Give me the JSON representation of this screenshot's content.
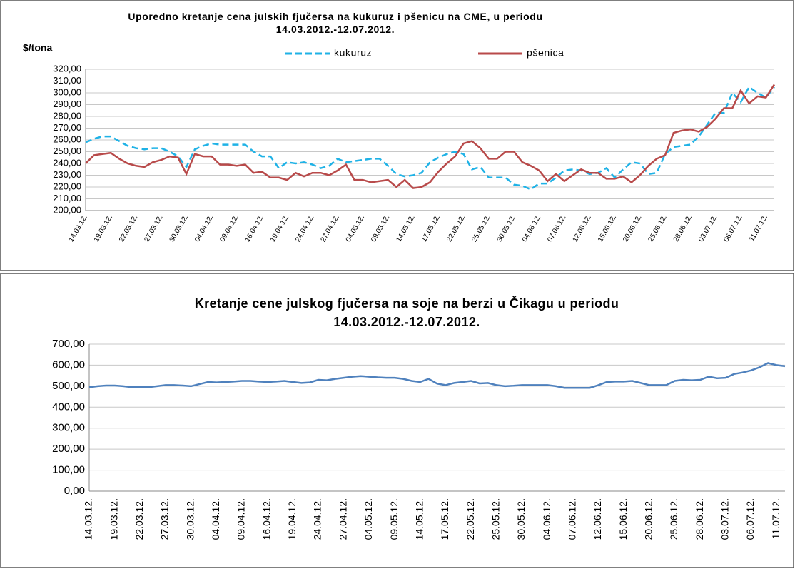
{
  "chart_data": [
    {
      "type": "line",
      "title": "Uporedno kretanje cena julskih fjučersa na kukuruz i pšenicu na CME, u periodu 14.03.2012.-12.07.2012.",
      "y_label": "$/tona",
      "categories": [
        "14.03.12.",
        null,
        null,
        "19.03.12.",
        null,
        null,
        "22.03.12.",
        null,
        null,
        "27.03.12.",
        null,
        null,
        "30.03.12.",
        null,
        null,
        "04.04.12.",
        null,
        null,
        "09.04.12.",
        null,
        null,
        "16.04.12.",
        null,
        null,
        "19.04.12.",
        null,
        null,
        "24.04.12.",
        null,
        null,
        "27.04.12.",
        null,
        null,
        "04.05.12.",
        null,
        null,
        "09.05.12.",
        null,
        null,
        "14.05.12.",
        null,
        null,
        "17.05.12.",
        null,
        null,
        "22.05.12.",
        null,
        null,
        "25.05.12.",
        null,
        null,
        "30.05.12.",
        null,
        null,
        "04.06.12.",
        null,
        null,
        "07.06.12.",
        null,
        null,
        "12.06.12.",
        null,
        null,
        "15.06.12.",
        null,
        null,
        "20.06.12.",
        null,
        null,
        "25.06.12.",
        null,
        null,
        "28.06.12.",
        null,
        null,
        "03.07.12.",
        null,
        null,
        "06.07.12.",
        null,
        null,
        "11.07.12.",
        null
      ],
      "series": [
        {
          "name": "kukuruz",
          "color": "#1fb2e6",
          "line_style": "dashed",
          "values": [
            258,
            261,
            263,
            263,
            259,
            255,
            253,
            252,
            253,
            253,
            250,
            246,
            237,
            252,
            255,
            257,
            256,
            256,
            256,
            256,
            250,
            246,
            246,
            236,
            241,
            240,
            241,
            239,
            236,
            238,
            244,
            241,
            242,
            243,
            244,
            244,
            238,
            231,
            229,
            230,
            232,
            241,
            245,
            248,
            250,
            248,
            235,
            237,
            228,
            228,
            228,
            222,
            221,
            218,
            223,
            223,
            228,
            234,
            235,
            234,
            231,
            232,
            236,
            228,
            235,
            241,
            240,
            231,
            232,
            248,
            254,
            255,
            256,
            263,
            273,
            283,
            283,
            300,
            292,
            305,
            300,
            296,
            305
          ]
        },
        {
          "name": "pšenica",
          "color": "#b84a4a",
          "line_style": "solid",
          "values": [
            240,
            247,
            248,
            249,
            244,
            240,
            238,
            237,
            241,
            243,
            246,
            245,
            231,
            248,
            246,
            246,
            239,
            239,
            238,
            239,
            232,
            233,
            228,
            228,
            226,
            232,
            229,
            232,
            232,
            230,
            234,
            239,
            226,
            226,
            224,
            225,
            226,
            220,
            226,
            219,
            220,
            224,
            233,
            240,
            246,
            257,
            259,
            253,
            244,
            244,
            250,
            250,
            241,
            238,
            234,
            225,
            231,
            225,
            230,
            235,
            232,
            232,
            227,
            227,
            229,
            224,
            230,
            238,
            244,
            247,
            266,
            268,
            269,
            267,
            271,
            278,
            287,
            287,
            302,
            291,
            297,
            296,
            307
          ]
        }
      ],
      "ylim": [
        200,
        320
      ],
      "yticks": [
        {
          "value": 200,
          "label": "200,00"
        },
        {
          "value": 210,
          "label": "210,00"
        },
        {
          "value": 220,
          "label": "220,00"
        },
        {
          "value": 230,
          "label": "230,00"
        },
        {
          "value": 240,
          "label": "240,00"
        },
        {
          "value": 250,
          "label": "250,00"
        },
        {
          "value": 260,
          "label": "260,00"
        },
        {
          "value": 270,
          "label": "270,00"
        },
        {
          "value": 280,
          "label": "280,00"
        },
        {
          "value": 290,
          "label": "290,00"
        },
        {
          "value": 300,
          "label": "300,00"
        },
        {
          "value": 310,
          "label": "310,00"
        },
        {
          "value": 320,
          "label": "320,00"
        }
      ],
      "grid": true,
      "legend": "top"
    },
    {
      "type": "line",
      "title": "Kretanje cene julskog fjučersa na soje na berzi u Čikagu u periodu 14.03.2012.-12.07.2012.",
      "categories": [
        "14.03.12.",
        null,
        null,
        "19.03.12.",
        null,
        null,
        "22.03.12.",
        null,
        null,
        "27.03.12.",
        null,
        null,
        "30.03.12.",
        null,
        null,
        "04.04.12.",
        null,
        null,
        "09.04.12.",
        null,
        null,
        "16.04.12.",
        null,
        null,
        "19.04.12.",
        null,
        null,
        "24.04.12.",
        null,
        null,
        "27.04.12.",
        null,
        null,
        "04.05.12.",
        null,
        null,
        "09.05.12.",
        null,
        null,
        "14.05.12.",
        null,
        null,
        "17.05.12.",
        null,
        null,
        "22.05.12.",
        null,
        null,
        "25.05.12.",
        null,
        null,
        "30.05.12.",
        null,
        null,
        "04.06.12.",
        null,
        null,
        "07.06.12.",
        null,
        null,
        "12.06.12.",
        null,
        null,
        "15.06.12.",
        null,
        null,
        "20.06.12.",
        null,
        null,
        "25.06.12.",
        null,
        null,
        "28.06.12.",
        null,
        null,
        "03.07.12.",
        null,
        null,
        "06.07.12.",
        null,
        null,
        "11.07.12.",
        null
      ],
      "color": "#4f81bd",
      "values": [
        495,
        500,
        503,
        503,
        500,
        495,
        497,
        495,
        500,
        505,
        505,
        503,
        500,
        510,
        520,
        518,
        520,
        522,
        525,
        525,
        522,
        520,
        522,
        525,
        520,
        515,
        518,
        530,
        528,
        535,
        540,
        545,
        548,
        545,
        542,
        540,
        540,
        535,
        525,
        520,
        535,
        512,
        505,
        515,
        520,
        525,
        513,
        515,
        505,
        500,
        502,
        505,
        505,
        505,
        505,
        500,
        492,
        492,
        492,
        492,
        505,
        520,
        522,
        522,
        525,
        515,
        505,
        505,
        505,
        525,
        530,
        528,
        530,
        545,
        538,
        540,
        558,
        565,
        575,
        590,
        610,
        600,
        595
      ],
      "ylim": [
        0,
        700
      ],
      "yticks": [
        {
          "value": 0,
          "label": "0,00"
        },
        {
          "value": 100,
          "label": "100,00"
        },
        {
          "value": 200,
          "label": "200,00"
        },
        {
          "value": 300,
          "label": "300,00"
        },
        {
          "value": 400,
          "label": "400,00"
        },
        {
          "value": 500,
          "label": "500,00"
        },
        {
          "value": 600,
          "label": "600,00"
        },
        {
          "value": 700,
          "label": "700,00"
        }
      ],
      "grid": true
    }
  ]
}
